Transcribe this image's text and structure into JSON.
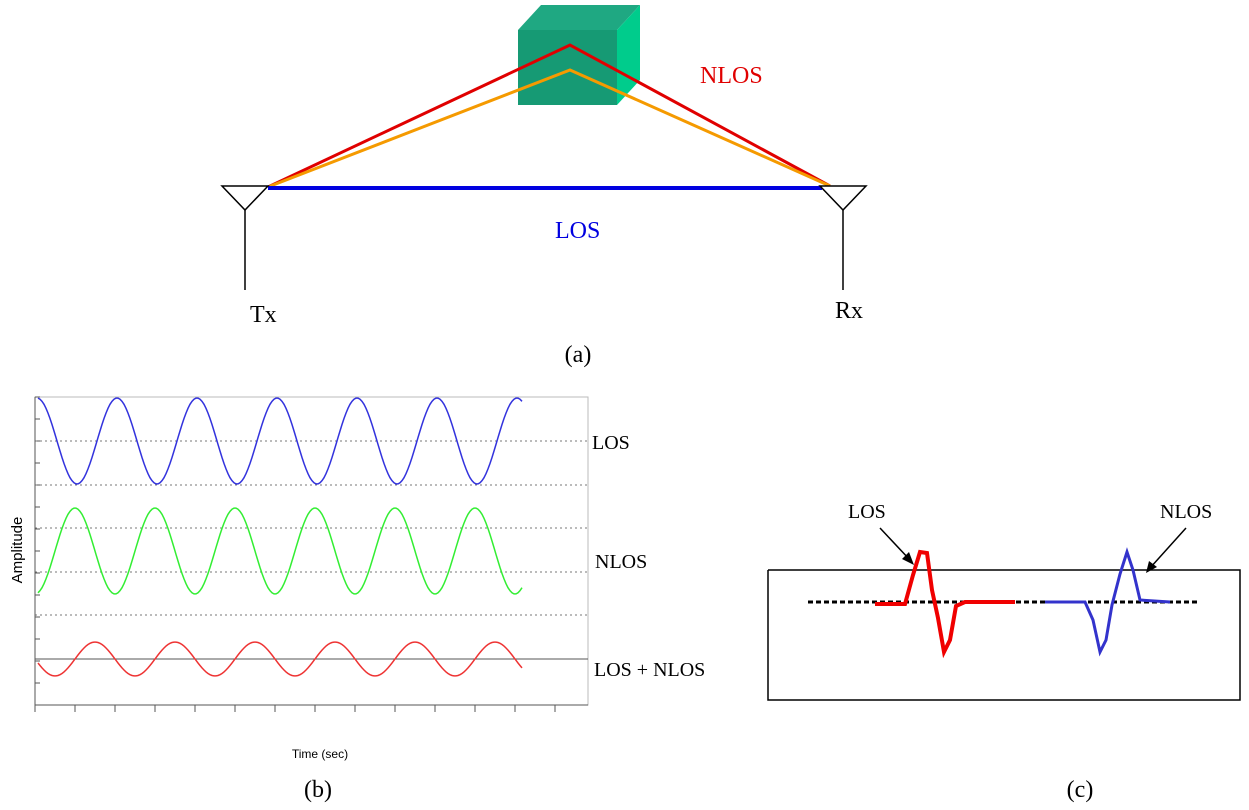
{
  "panel_a": {
    "nlos_label": "NLOS",
    "los_label": "LOS",
    "tx_label": "Tx",
    "rx_label": "Rx",
    "caption": "(a)"
  },
  "panel_b": {
    "los_label": "LOS",
    "nlos_label": "NLOS",
    "sum_label": "LOS + NLOS",
    "y_axis_label": "Amplitude",
    "x_axis_label": "Time (sec)",
    "caption": "(b)"
  },
  "panel_c": {
    "los_label": "LOS",
    "nlos_label": "NLOS",
    "caption": "(c)"
  }
}
